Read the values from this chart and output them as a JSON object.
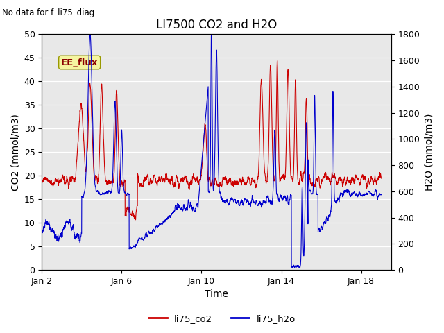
{
  "title": "LI7500 CO2 and H2O",
  "subtitle": "No data for f_li75_diag",
  "xlabel": "Time",
  "ylabel_left": "CO2 (mmol/m3)",
  "ylabel_right": "H2O (mmol/m3)",
  "ylim_left": [
    0,
    50
  ],
  "ylim_right": [
    0,
    1800
  ],
  "yticks_left": [
    0,
    5,
    10,
    15,
    20,
    25,
    30,
    35,
    40,
    45,
    50
  ],
  "yticks_right": [
    0,
    200,
    400,
    600,
    800,
    1000,
    1200,
    1400,
    1600,
    1800
  ],
  "xtick_labels": [
    "Jan 2",
    "Jan 6",
    "Jan 10",
    "Jan 14",
    "Jan 18"
  ],
  "xtick_positions": [
    2,
    6,
    10,
    14,
    18
  ],
  "annotation_box": "EE_flux",
  "legend_labels": [
    "li75_co2",
    "li75_h2o"
  ],
  "legend_colors": [
    "#cc0000",
    "#0000cc"
  ],
  "plot_bg_color": "#e8e8e8",
  "grid_color": "#ffffff",
  "line_color_co2": "#cc0000",
  "line_color_h2o": "#0000cc",
  "title_fontsize": 12,
  "label_fontsize": 10,
  "tick_fontsize": 9,
  "xlim": [
    2,
    19.5
  ]
}
